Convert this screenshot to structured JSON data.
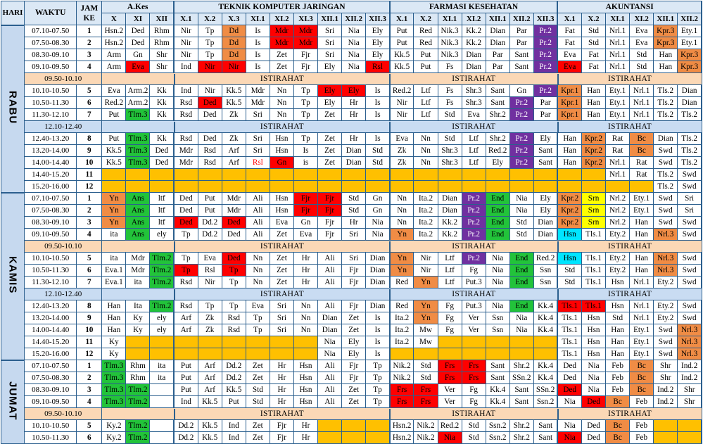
{
  "headers": {
    "hari": "HARI",
    "waktu": "WAKTU",
    "jamke": [
      "JAM",
      "KE"
    ],
    "groups": [
      {
        "name": "A.Kes",
        "classes": [
          "X",
          "XI",
          "XII"
        ],
        "bold": false
      },
      {
        "name": "TEKNIK KOMPUTER JARINGAN",
        "classes": [
          "X.1",
          "X.2",
          "X.3",
          "XI.1",
          "XI.2",
          "XI.3",
          "XII.1",
          "XII.2",
          "XII.3"
        ],
        "bold": false
      },
      {
        "name": "FARMASI KESEHATAN",
        "classes": [
          "X.1",
          "X.2",
          "XI.1",
          "XI.2",
          "XII.1",
          "XII.2",
          "XII.3"
        ],
        "bold": true
      },
      {
        "name": "AKUNTANSI",
        "classes": [
          "X.1",
          "X.2",
          "XI.1",
          "XI.2",
          "XII.1",
          "XII.2"
        ],
        "bold": true
      }
    ]
  },
  "colors": {
    "orange": "#f08c45",
    "red": "#ff0000",
    "green": "#22c33a",
    "purple": "#7030a0",
    "yellow": "#ffff00",
    "gold": "#ffc000",
    "cyan": "#00e5ff",
    "white": "#ffffff"
  },
  "days": [
    {
      "name": "RABU",
      "rows": [
        {
          "t": "07.10-07.50",
          "k": "1",
          "c": [
            "Hsn.2",
            "Ded",
            "Rhm",
            "Nir",
            "Tp",
            "Dd|o",
            "Is",
            "Mdr|r",
            "Mdr|r",
            "Sri",
            "Nia",
            "Ely",
            "Put",
            "Red",
            "Nik.3",
            "Kk.2",
            "Dian",
            "Par",
            "Pr.2|p",
            "Fat",
            "Std",
            "Nrl.1",
            "Eva",
            "Kpr.3|o",
            "Ety.1"
          ]
        },
        {
          "t": "07.50-08.30",
          "k": "2",
          "c": [
            "Hsn.2",
            "Ded",
            "Rhm",
            "Nir",
            "Tp",
            "Dd|o",
            "Is",
            "Mdr|r",
            "Mdr|r",
            "Sri",
            "Nia",
            "Ely",
            "Put",
            "Red",
            "Nik.3",
            "Kk.2",
            "Dian",
            "Par",
            "Pr.2|p",
            "Fat",
            "Std",
            "Nrl.1",
            "Eva",
            "Kpr.3|o",
            "Ety.1"
          ]
        },
        {
          "t": "08.30-09.10",
          "k": "3",
          "c": [
            "Arm",
            "Gn",
            "Shr",
            "Nir",
            "Tp",
            "Dd|o",
            "Is",
            "Zet",
            "Fjr",
            "Sri",
            "Nia",
            "Ely",
            "Kk.5",
            "Put",
            "Nik.3",
            "Dian",
            "Par",
            "Sant",
            "Pr.2|p",
            "Eva",
            "Fat",
            "Nrl.1",
            "Std",
            "Han",
            "Kpr.3|o"
          ]
        },
        {
          "t": "09.10-09.50",
          "k": "4",
          "c": [
            "Arm",
            "Eva|r",
            "Shr",
            "Ind",
            "Nir|r",
            "Nir|r",
            "Is",
            "Zet",
            "Fjr",
            "Ely",
            "Nia",
            "Rsl|r",
            "Kk.5",
            "Put",
            "Fs",
            "Dian",
            "Par",
            "Sant",
            "Pr.2|p",
            "Eva|r",
            "Fat",
            "Nrl.1",
            "Std",
            "Han",
            "Kpr.3|o"
          ]
        },
        {
          "t": "09.50-10.10",
          "ist": "ISTIRAHAT",
          "style": "o"
        },
        {
          "t": "10.10-10.50",
          "k": "5",
          "c": [
            "Eva",
            "Arm.2",
            "Kk",
            "Ind",
            "Nir",
            "Kk.5",
            "Mdr",
            "Nn",
            "Tp",
            "Ely|r",
            "Ely|r",
            "Is",
            "Red.2",
            "Ltf",
            "Fs",
            "Shr.3",
            "Sant",
            "Gn",
            "Pr.2|p",
            "Kpr.1|o",
            "Han",
            "Ety.1",
            "Nrl.1",
            "Tls.2",
            "Dian"
          ]
        },
        {
          "t": "10.50-11.30",
          "k": "6",
          "c": [
            "Red.2",
            "Arm.2",
            "Kk",
            "Rsd",
            "Ded|r",
            "Kk.5",
            "Mdr",
            "Nn",
            "Tp",
            "Ely",
            "Hr",
            "Is",
            "Nir",
            "Ltf",
            "Fs",
            "Shr.3",
            "Sant",
            "Pr.2|p",
            "Par",
            "Kpr.1|o",
            "Han",
            "Ety.1",
            "Nrl.1",
            "Tls.2",
            "Dian"
          ]
        },
        {
          "t": "11.30-12.10",
          "k": "7",
          "c": [
            "Put",
            "Tlm.3|g",
            "Kk",
            "Rsd",
            "Ded",
            "Zk",
            "Sri",
            "Nn",
            "Tp",
            "Zet",
            "Hr",
            "Is",
            "Nir",
            "Ltf",
            "Std",
            "Eva",
            "Shr.2",
            "Pr.2|p",
            "Par",
            "Kpr.1|o",
            "Han",
            "Ety.1",
            "Nrl.1",
            "Tls.2",
            "Tls.2"
          ]
        },
        {
          "t": "12.10-12.40",
          "ist": "ISTIRAHAT",
          "style": "b"
        },
        {
          "t": "12.40-13.20",
          "k": "8",
          "c": [
            "Put",
            "Tlm.3|g",
            "Kk",
            "Rsd",
            "Ded",
            "Zk",
            "Sri",
            "Hsn",
            "Tp",
            "Zet",
            "Hr",
            "Is",
            "Eva",
            "Nn",
            "Std",
            "Ltf",
            "Shr.2",
            "Pr.2|p",
            "Ely",
            "Han",
            "Kpr.2|o",
            "Rat",
            "Bc|o",
            "Dian",
            "Tls.2"
          ]
        },
        {
          "t": "13.20-14.00",
          "k": "9",
          "c": [
            "Kk.5",
            "Tlm.3|g",
            "Ded",
            "Mdr",
            "Rsd",
            "Arf",
            "Sri",
            "Hsn",
            "Is",
            "Zet",
            "Dian",
            "Std",
            "Zk",
            "Nn",
            "Shr.3",
            "Ltf",
            "Red.2",
            "Pr.2|p",
            "Sant",
            "Han",
            "Kpr.2|o",
            "Rat",
            "Bc|o",
            "Swd",
            "Tls.2"
          ]
        },
        {
          "t": "14.00-14.40",
          "k": "10",
          "c": [
            "Kk.5",
            "Tlm.3|g",
            "Ded",
            "Mdr",
            "Rsd",
            "Arf",
            "Rsl|rt",
            "Gn|r",
            "is",
            "Zet",
            "Dian",
            "Std",
            "Zk",
            "Nn",
            "Shr.3",
            "Ltf",
            "Ely",
            "Pr.2|p",
            "Sant",
            "Han",
            "Kpr.2|o",
            "Nrl.1",
            "Rat",
            "Swd",
            "Tls.2"
          ]
        },
        {
          "t": "14.40-15.20",
          "k": "11",
          "c": [
            "|y",
            "|y",
            "|y",
            "|y",
            "|y",
            "|y",
            "|y",
            "|y",
            "|y",
            "|y",
            "|y",
            "|y",
            "|y",
            "|y",
            "|y",
            "|y",
            "|y",
            "|y",
            "|y",
            "|y",
            "|y",
            "Nrl.1",
            "Rat",
            "Tls.2",
            "Swd"
          ]
        },
        {
          "t": "15.20-16.00",
          "k": "12",
          "c": [
            "|y",
            "|y",
            "|y",
            "|y",
            "|y",
            "|y",
            "|y",
            "|y",
            "|y",
            "|y",
            "|y",
            "|y",
            "|y",
            "|y",
            "|y",
            "|y",
            "|y",
            "|y",
            "|y",
            "|y",
            "|y",
            "|y",
            "|y",
            "Tls.2",
            "Swd"
          ]
        }
      ]
    },
    {
      "name": "KAMIS",
      "rows": [
        {
          "t": "07.10-07.50",
          "k": "1",
          "c": [
            "Yn|o",
            "Ans|g",
            "ltf",
            "Ded",
            "Put",
            "Mdr",
            "Ali",
            "Hsn",
            "Fjr|r",
            "Fjr|r",
            "Std",
            "Gn",
            "Nn",
            "Ita.2",
            "Dian",
            "Pr.2|p",
            "End|g",
            "Nia",
            "Ely",
            "Kpr.2|o",
            "Srn|yl",
            "Nrl.2",
            "Ety.1",
            "Swd",
            "Sri"
          ]
        },
        {
          "t": "07.50-08.30",
          "k": "2",
          "c": [
            "Yn|o",
            "Ans|g",
            "ltf",
            "Ded",
            "Put",
            "Mdr",
            "Ali",
            "Hsn",
            "Fjr|r",
            "Fjr|r",
            "Std",
            "Gn",
            "Nn",
            "Ita.2",
            "Dian",
            "Pr.2|p",
            "End|g",
            "Nia",
            "Ely",
            "Kpr.2|o",
            "Srn|yl",
            "Nrl.2",
            "Ety.1",
            "Swd",
            "Sri"
          ]
        },
        {
          "t": "08.30-09.10",
          "k": "3",
          "c": [
            "Yn|o",
            "Ans|g",
            "ltf",
            "Ded|r",
            "Dd.2",
            "Ded|r",
            "Ali",
            "Eva",
            "Gn",
            "Fjr",
            "Hr",
            "Nia",
            "Nn",
            "Ita.2",
            "Kk.2",
            "Pr.2|p",
            "End|g",
            "Std",
            "Dian",
            "Kpr.2|o",
            "Srn|yl",
            "Nrl.2",
            "Han",
            "Swd",
            "Swd"
          ]
        },
        {
          "t": "09.10-09.50",
          "k": "4",
          "c": [
            "ita",
            "Ans|g",
            "ely",
            "Tp",
            "Dd.2",
            "Ded",
            "Ali",
            "Zet",
            "Eva",
            "Fjr",
            "Sri",
            "Nia",
            "Yn|o",
            "Ita.2",
            "Kk.2",
            "Pr.2|p",
            "End|g",
            "Std",
            "Dian",
            "Hsn|c",
            "Tls.1",
            "Ety.2",
            "Han",
            "Nrl.3|o",
            "Swd"
          ]
        },
        {
          "t": "09.50-10.10",
          "ist": "ISTIRAHAT",
          "style": "o"
        },
        {
          "t": "10.10-10.50",
          "k": "5",
          "c": [
            "ita",
            "Mdr",
            "Tlm.2|g",
            "Tp",
            "Eva",
            "Ded|r",
            "Nn",
            "Zet",
            "Hr",
            "Ali",
            "Sri",
            "Dian",
            "Yn|o",
            "Nir",
            "Ltf",
            "Pr.2|p",
            "Nia",
            "End|g",
            "Red.2",
            "Hsn|c",
            "Tls.1",
            "Ety.2",
            "Han",
            "Nrl.3|o",
            "Swd"
          ]
        },
        {
          "t": "10.50-11.30",
          "k": "6",
          "c": [
            "Eva.1",
            "Mdr",
            "Tlm.2|g",
            "Tp|r",
            "Rsl",
            "Tp|r",
            "Nn",
            "Zet",
            "Hr",
            "Ali",
            "Fjr",
            "Dian",
            "Yn|o",
            "Nir",
            "Ltf",
            "Fg",
            "Nia",
            "End|g",
            "Ssn",
            "Std",
            "Tls.1",
            "Ety.2",
            "Han",
            "Nrl.3|o",
            "Swd"
          ]
        },
        {
          "t": "11.30-12.10",
          "k": "7",
          "c": [
            "Eva.1",
            "ita",
            "Tlm.2|g",
            "Rsd",
            "Nir",
            "Tp",
            "Nn",
            "Zet",
            "Hr",
            "Ali",
            "Fjr",
            "Dian",
            "Red",
            "Yn|o",
            "Ltf",
            "Put.3",
            "Nia",
            "End|g",
            "Ssn",
            "Std",
            "Tls.1",
            "Hsn",
            "Nrl.1",
            "Ety.2",
            "Swd"
          ]
        },
        {
          "t": "12.10-12.40",
          "ist": "ISTIRAHAT",
          "style": "b"
        },
        {
          "t": "12.40-13.20",
          "k": "8",
          "c": [
            "Han",
            "Ita",
            "Tlm.2|g",
            "Rsd",
            "Tp",
            "Tp",
            "Eva",
            "Sri",
            "Nn",
            "Ali",
            "Fjr",
            "Dian",
            "Red",
            "Yn|o",
            "Fg",
            "Put.3",
            "Nia",
            "End|g",
            "Kk.4",
            "Tls.1|r",
            "Tls.1|r",
            "Hsn",
            "Nrl.1",
            "Ety.2",
            "Swd"
          ]
        },
        {
          "t": "13.20-14.00",
          "k": "9",
          "c": [
            "Han",
            "Ky",
            "ely",
            "Arf",
            "Zk",
            "Rsd",
            "Tp",
            "Sri",
            "Nn",
            "Dian",
            "Zet",
            "Is",
            "Ita.2",
            "Yn|o",
            "Fg",
            "Ver",
            "Ssn",
            "Nia",
            "Kk.4",
            "Tls.1",
            "Hsn",
            "Std",
            "Nrl.1",
            "Ety.2",
            "Swd"
          ]
        },
        {
          "t": "14.00-14.40",
          "k": "10",
          "c": [
            "Han",
            "Ky",
            "ely",
            "Arf",
            "Zk",
            "Rsd",
            "Tp",
            "Sri",
            "Nn",
            "Dian",
            "Zet",
            "Is",
            "Ita.2",
            "Mw",
            "Fg",
            "Ver",
            "Ssn",
            "Nia",
            "Kk.4",
            "Tls.1",
            "Hsn",
            "Han",
            "Ety.1",
            "Swd",
            "Nrl.3|o"
          ]
        },
        {
          "t": "14.40-15.20",
          "k": "11",
          "c": [
            "Ky",
            "|y",
            "|y",
            "|y",
            "|y",
            "|y",
            "|y",
            "|y",
            "|y",
            "Nia",
            "Ely",
            "Is",
            "Ita.2",
            "Mw",
            "|y",
            "|y",
            "|y",
            "|y",
            "|y",
            "Tls.1",
            "Hsn",
            "Han",
            "Ety.1",
            "Swd",
            "Nrl.3|o"
          ]
        },
        {
          "t": "15.20-16.00",
          "k": "12",
          "c": [
            "Ky",
            "|y",
            "|y",
            "|y",
            "|y",
            "|y",
            "|y",
            "|y",
            "|y",
            "Nia",
            "Ely",
            "Is",
            "|y",
            "|y",
            "|y",
            "|y",
            "|y",
            "|y",
            "|y",
            "Tls.1",
            "Hsn",
            "Han",
            "Ety.1",
            "Swd",
            "Nrl.3|o"
          ]
        }
      ]
    },
    {
      "name": "JUMAT",
      "rows": [
        {
          "t": "07.10-07.50",
          "k": "1",
          "c": [
            "Tlm.3|g",
            "Rhm",
            "ita",
            "Put",
            "Arf",
            "Dd.2",
            "Zet",
            "Hr",
            "Hsn",
            "Ali",
            "Fjr",
            "Tp",
            "Nik.2",
            "Std",
            "Frs|r",
            "Frs|r",
            "Sant",
            "Shr.2",
            "Kk.4",
            "Ded",
            "Nia",
            "Feb",
            "Bc|o",
            "Shr",
            "Ind.2"
          ]
        },
        {
          "t": "07.50-08.30",
          "k": "2",
          "c": [
            "Tlm.3|g",
            "Rhm",
            "ita",
            "Put",
            "Arf",
            "Dd.2",
            "Zet",
            "Hr",
            "Hsn",
            "Ali",
            "Fjr",
            "Tp",
            "Nik.2",
            "Std",
            "Frs|r",
            "Frs|r",
            "Sant",
            "SSn.2",
            "Kk.4",
            "Ded",
            "Nia",
            "Feb",
            "Bc|o",
            "Shr",
            "Ind.2"
          ]
        },
        {
          "t": "08.30-09.10",
          "k": "3",
          "c": [
            "Tlm.3|g",
            "Tlm.2|g",
            "",
            "Put",
            "Arf",
            "Kk.5",
            "Std",
            "Hr",
            "Hsn",
            "Ali",
            "Zet",
            "Tp",
            "Frs|r",
            "Frs|r",
            "Ver",
            "Fg",
            "Kk.4",
            "Sant",
            "SSn.2",
            "Ded|r",
            "Nia",
            "Feb",
            "Bc|o",
            "Ind.2",
            "Shr"
          ]
        },
        {
          "t": "09.10-09.50",
          "k": "4",
          "c": [
            "Tlm.3|g",
            "Tlm.2|g",
            "",
            "Ind",
            "Kk.5",
            "Put",
            "Std",
            "Hr",
            "Hsn",
            "Ali",
            "Zet",
            "Tp",
            "Frs|r",
            "Frs|r",
            "Ver",
            "Fg",
            "Kk.4",
            "Sant",
            "Ssn.2",
            "Nia",
            "Ded|r",
            "Bc|o",
            "Feb",
            "Ind.2",
            "Shr"
          ]
        },
        {
          "t": "09.50-10.10",
          "ist": "ISTIRAHAT",
          "style": "o"
        },
        {
          "t": "10.10-10.50",
          "k": "5",
          "c": [
            "Ky.2",
            "Tlm.2|g",
            "",
            "Dd.2",
            "Kk.5",
            "Ind",
            "Zet",
            "Fjr",
            "Hr",
            "|y",
            "|y",
            "|y",
            "Hsn.2",
            "Nik.2",
            "Red.2",
            "Std",
            "Ssn.2",
            "Shr.2",
            "Sant",
            "Nia",
            "Ded",
            "Bc|o",
            "Feb",
            "|y",
            "|y"
          ]
        },
        {
          "t": "10.50-11.30",
          "k": "6",
          "c": [
            "Ky.2",
            "Tlm.2|g",
            "",
            "Dd.2",
            "Kk.5",
            "Ind",
            "Zet",
            "Fjr",
            "Hr",
            "|y",
            "|y",
            "|y",
            "Hsn.2",
            "Nik.2",
            "Nia|r",
            "Std",
            "Ssn.2",
            "Shr.2",
            "Sant",
            "Nia|r",
            "Ded",
            "Bc|o",
            "Feb",
            "|y",
            "|y"
          ]
        }
      ]
    }
  ]
}
